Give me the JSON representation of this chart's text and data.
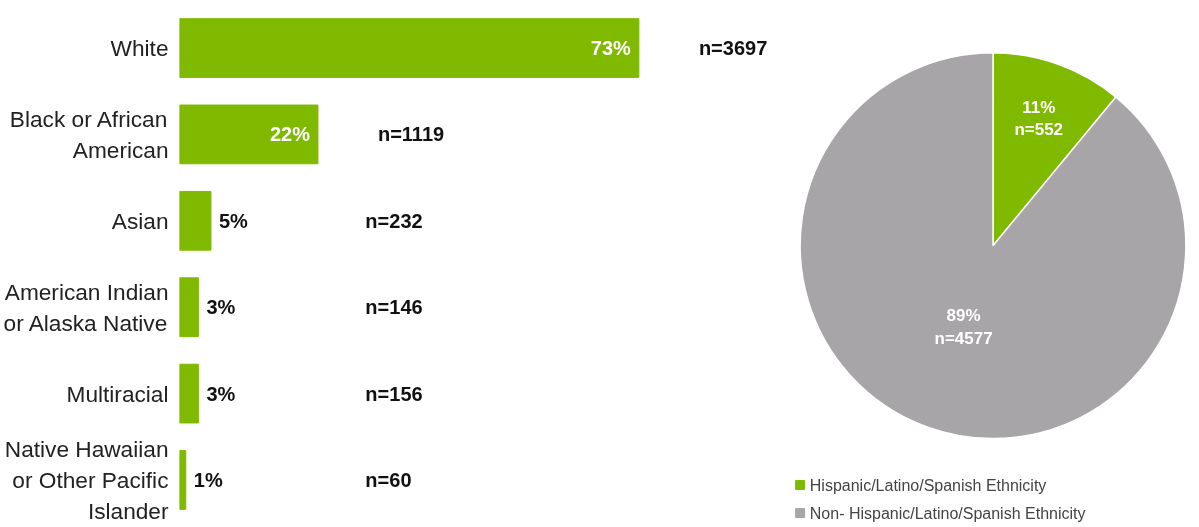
{
  "chart_data": [
    {
      "type": "bar",
      "orientation": "horizontal",
      "categories": [
        "White",
        "Black or African\nAmerican",
        "Asian",
        "American Indian\nor Alaska Native",
        "Multiracial",
        "Native Hawaiian\nor Other Pacific\nIslander"
      ],
      "values": [
        73,
        22,
        5,
        3,
        3,
        1
      ],
      "color": "#7fba00",
      "value_labels": [
        "73%",
        "22%",
        "5%",
        "3%",
        "3%",
        "1%"
      ],
      "tick_labels": "y",
      "grid": false,
      "legend": false,
      "annotations": [
        "n=3697",
        "n=1119",
        "n=232",
        "n=146",
        "n=156",
        "n=60"
      ]
    },
    {
      "type": "pie",
      "categories": [
        "Hispanic/Latino/Spanish Ethnicity",
        "Non- Hispanic/Latino/Spanish Ethnicity"
      ],
      "values": [
        11,
        89
      ],
      "colors": [
        "#7fba00",
        "#a7a5a8"
      ],
      "value_labels": [
        "11%\nn=552",
        "89%\nn=4577"
      ],
      "legend": "bottom"
    }
  ]
}
